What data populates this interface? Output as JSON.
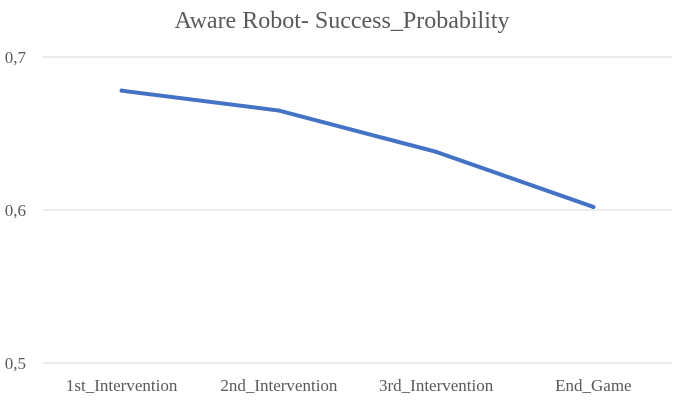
{
  "chart_data": {
    "type": "line",
    "title": "Aware Robot- Success_Probability",
    "xlabel": "",
    "ylabel": "",
    "categories": [
      "1st_Intervention",
      "2nd_Intervention",
      "3rd_Intervention",
      "End_Game"
    ],
    "series": [
      {
        "values": [
          0.678,
          0.665,
          0.638,
          0.602
        ],
        "color": "#4472c4"
      }
    ],
    "ylim": [
      0.5,
      0.7
    ],
    "y_ticks": [
      0.5,
      0.6,
      0.7
    ],
    "y_tick_labels": [
      "0,5",
      "0,6",
      "0,7"
    ],
    "grid": true,
    "legend": "none"
  }
}
